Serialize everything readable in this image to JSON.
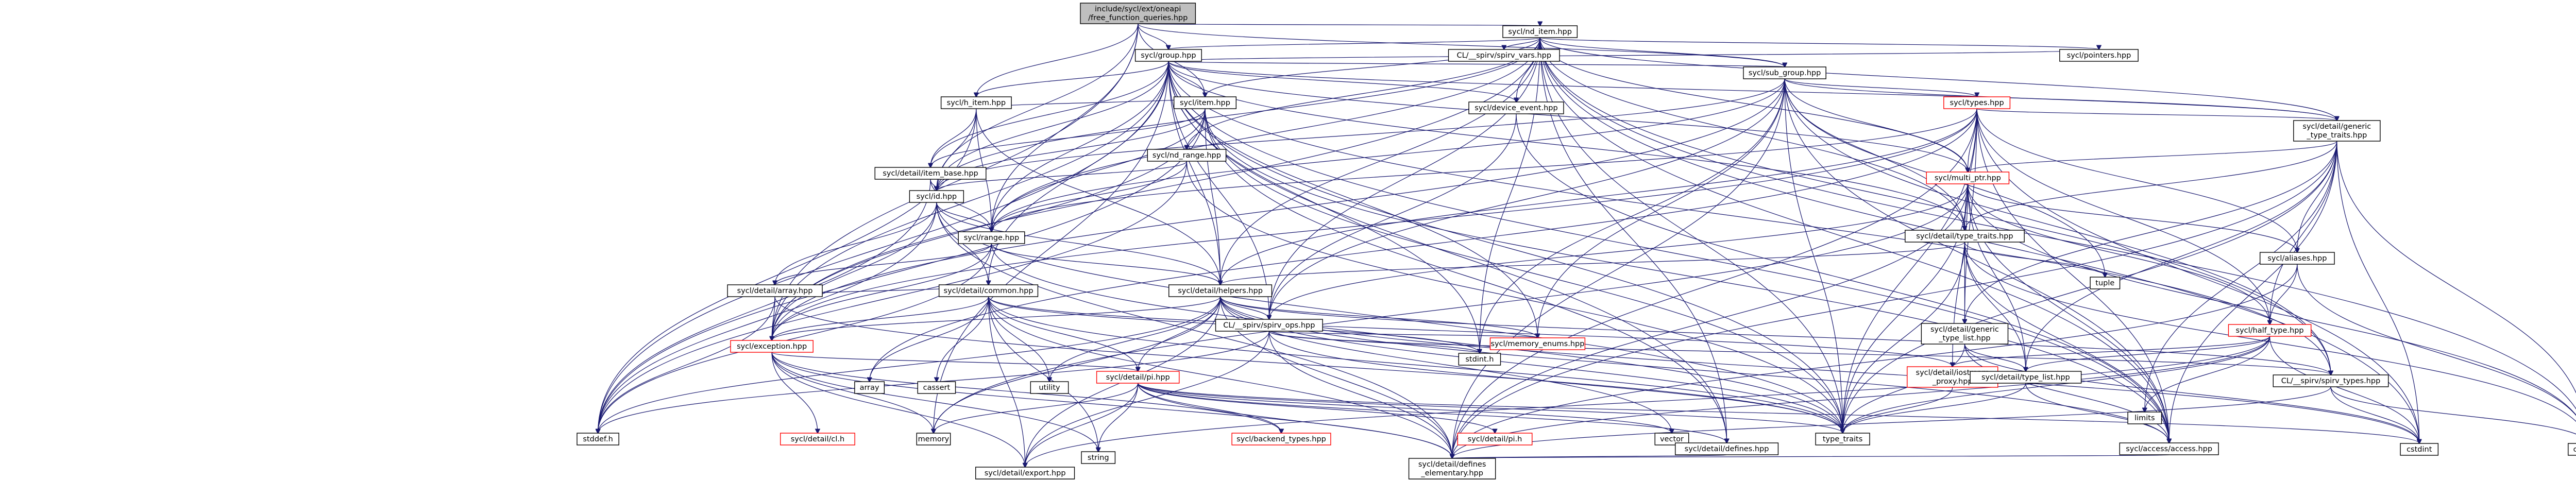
{
  "nodes": [
    {
      "id": "root",
      "label": [
        "include/sycl/ext/oneapi",
        "/free_function_queries.hpp"
      ],
      "kind": "root"
    },
    {
      "id": "nditem",
      "label": [
        "sycl/nd_item.hpp"
      ]
    },
    {
      "id": "group",
      "label": [
        "sycl/group.hpp"
      ]
    },
    {
      "id": "clspirv",
      "label": [
        "CL/__spirv/spirv_vars.hpp"
      ]
    },
    {
      "id": "pointers",
      "label": [
        "sycl/pointers.hpp"
      ]
    },
    {
      "id": "subgroup",
      "label": [
        "sycl/sub_group.hpp"
      ]
    },
    {
      "id": "hitem",
      "label": [
        "sycl/h_item.hpp"
      ]
    },
    {
      "id": "item",
      "label": [
        "sycl/item.hpp"
      ]
    },
    {
      "id": "devevent",
      "label": [
        "sycl/device_event.hpp"
      ]
    },
    {
      "id": "types",
      "label": [
        "sycl/types.hpp"
      ],
      "kind": "red"
    },
    {
      "id": "gentypetraits",
      "label": [
        "sycl/detail/generic",
        "_type_traits.hpp"
      ]
    },
    {
      "id": "ndrange",
      "label": [
        "sycl/nd_range.hpp"
      ]
    },
    {
      "id": "itembase",
      "label": [
        "sycl/detail/item_base.hpp"
      ]
    },
    {
      "id": "id",
      "label": [
        "sycl/id.hpp"
      ]
    },
    {
      "id": "multiptr",
      "label": [
        "sycl/multi_ptr.hpp"
      ],
      "kind": "red"
    },
    {
      "id": "range",
      "label": [
        "sycl/range.hpp"
      ]
    },
    {
      "id": "typetraits",
      "label": [
        "sycl/detail/type_traits.hpp"
      ]
    },
    {
      "id": "aliases",
      "label": [
        "sycl/aliases.hpp"
      ]
    },
    {
      "id": "darray",
      "label": [
        "sycl/detail/array.hpp"
      ]
    },
    {
      "id": "common",
      "label": [
        "sycl/detail/common.hpp"
      ]
    },
    {
      "id": "helpers",
      "label": [
        "sycl/detail/helpers.hpp"
      ]
    },
    {
      "id": "spirvops",
      "label": [
        "CL/__spirv/spirv_ops.hpp"
      ]
    },
    {
      "id": "genlist",
      "label": [
        "sycl/detail/generic",
        "_type_list.hpp"
      ]
    },
    {
      "id": "halftype",
      "label": [
        "sycl/half_type.hpp"
      ],
      "kind": "red"
    },
    {
      "id": "tuple",
      "label": [
        "tuple"
      ],
      "kind": "ext"
    },
    {
      "id": "exception",
      "label": [
        "sycl/exception.hpp"
      ],
      "kind": "red"
    },
    {
      "id": "pi",
      "label": [
        "sycl/detail/pi.hpp"
      ],
      "kind": "red"
    },
    {
      "id": "memenums",
      "label": [
        "sycl/memory_enums.hpp"
      ],
      "kind": "red"
    },
    {
      "id": "stdint",
      "label": [
        "stdint.h"
      ],
      "kind": "ext"
    },
    {
      "id": "iostream",
      "label": [
        "sycl/detail/iostream",
        "_proxy.hpp"
      ],
      "kind": "red"
    },
    {
      "id": "typelist",
      "label": [
        "sycl/detail/type_list.hpp"
      ]
    },
    {
      "id": "spirvtypes",
      "label": [
        "CL/__spirv/spirv_types.hpp"
      ]
    },
    {
      "id": "limits",
      "label": [
        "limits"
      ],
      "kind": "ext"
    },
    {
      "id": "array",
      "label": [
        "array"
      ],
      "kind": "ext"
    },
    {
      "id": "cassert",
      "label": [
        "cassert"
      ],
      "kind": "ext"
    },
    {
      "id": "utility",
      "label": [
        "utility"
      ],
      "kind": "ext"
    },
    {
      "id": "stddef",
      "label": [
        "stddef.h"
      ],
      "kind": "ext"
    },
    {
      "id": "cl",
      "label": [
        "sycl/detail/cl.h"
      ],
      "kind": "red"
    },
    {
      "id": "memory",
      "label": [
        "memory"
      ],
      "kind": "ext"
    },
    {
      "id": "string",
      "label": [
        "string"
      ],
      "kind": "ext"
    },
    {
      "id": "backendtypes",
      "label": [
        "sycl/backend_types.hpp"
      ],
      "kind": "red"
    },
    {
      "id": "dpih",
      "label": [
        "sycl/detail/pi.h"
      ],
      "kind": "red"
    },
    {
      "id": "vector",
      "label": [
        "vector"
      ],
      "kind": "ext"
    },
    {
      "id": "typetraitsstd",
      "label": [
        "type_traits"
      ],
      "kind": "ext"
    },
    {
      "id": "defines",
      "label": [
        "sycl/detail/defines.hpp"
      ]
    },
    {
      "id": "accaccess",
      "label": [
        "sycl/access/access.hpp"
      ]
    },
    {
      "id": "cstdint",
      "label": [
        "cstdint"
      ],
      "kind": "ext"
    },
    {
      "id": "cstddef",
      "label": [
        "cstddef"
      ],
      "kind": "ext"
    },
    {
      "id": "exporth",
      "label": [
        "sycl/detail/export.hpp"
      ]
    },
    {
      "id": "definesel",
      "label": [
        "sycl/detail/defines",
        "_elementary.hpp"
      ]
    }
  ]
}
